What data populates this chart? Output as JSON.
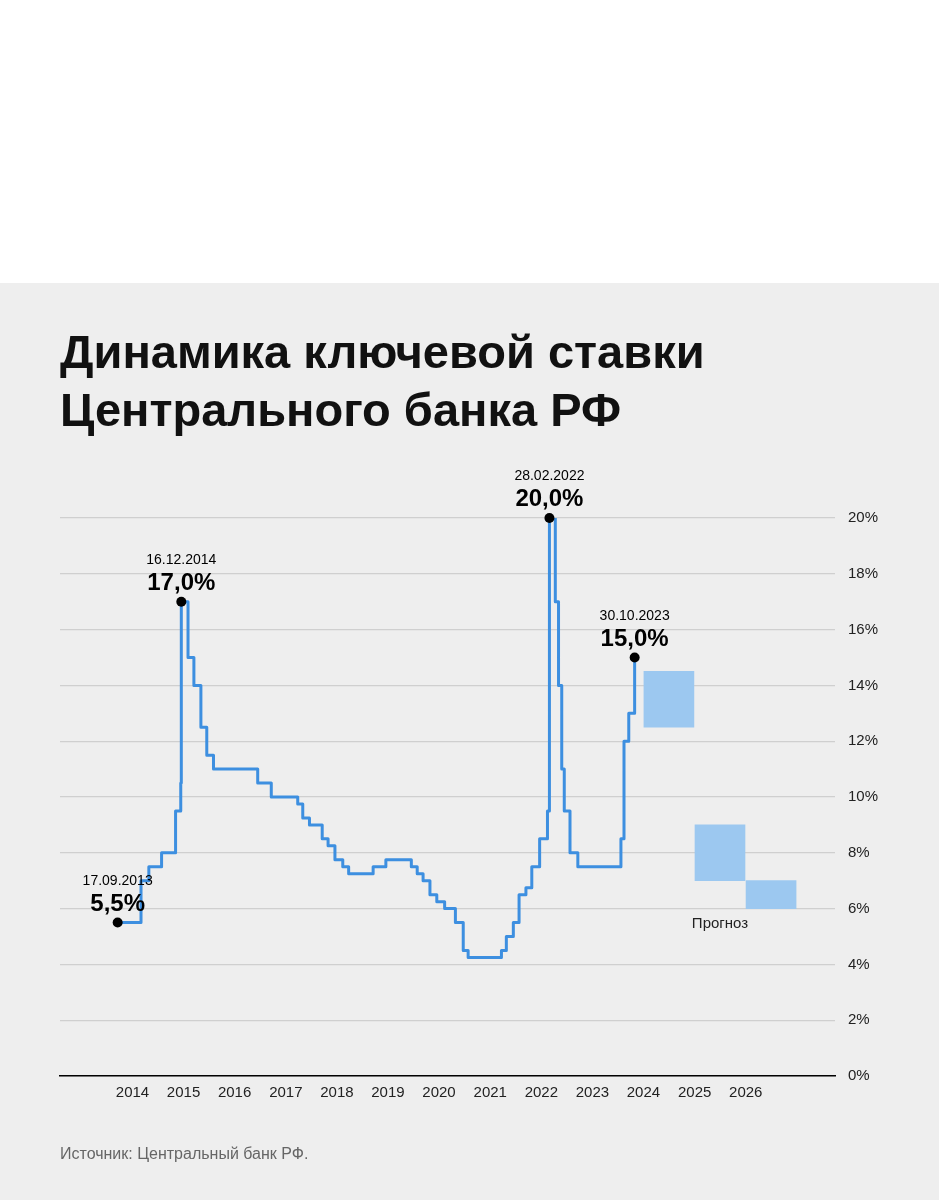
{
  "chart_data": {
    "type": "step",
    "title": "Динамика ключевой ставки Центрального банка РФ",
    "xlim": [
      "2012-08",
      "2027-10"
    ],
    "xticks": [
      "2014",
      "2015",
      "2016",
      "2017",
      "2018",
      "2019",
      "2020",
      "2021",
      "2022",
      "2023",
      "2024",
      "2025",
      "2026"
    ],
    "ylim": [
      0,
      20
    ],
    "yticks": [
      {
        "value": 0,
        "label": "0%"
      },
      {
        "value": 2,
        "label": "2%"
      },
      {
        "value": 4,
        "label": "4%"
      },
      {
        "value": 6,
        "label": "6%"
      },
      {
        "value": 8,
        "label": "8%"
      },
      {
        "value": 10,
        "label": "10%"
      },
      {
        "value": 12,
        "label": "12%"
      },
      {
        "value": 14,
        "label": "14%"
      },
      {
        "value": 16,
        "label": "16%"
      },
      {
        "value": 18,
        "label": "18%"
      },
      {
        "value": 20,
        "label": "20%"
      }
    ],
    "grid": "y",
    "series": [
      {
        "color": "#3d8fe0",
        "x": [
          "2013-09-17",
          "2014-03-03",
          "2014-04-28",
          "2014-07-28",
          "2014-11-05",
          "2014-12-12",
          "2014-12-16",
          "2015-02-02",
          "2015-03-16",
          "2015-05-05",
          "2015-06-16",
          "2015-08-03",
          "2016-06-14",
          "2016-09-19",
          "2017-03-27",
          "2017-05-02",
          "2017-06-19",
          "2017-09-18",
          "2017-10-30",
          "2017-12-18",
          "2018-02-12",
          "2018-03-26",
          "2018-09-17",
          "2018-12-17",
          "2019-06-17",
          "2019-07-29",
          "2019-09-09",
          "2019-10-28",
          "2019-12-16",
          "2020-02-10",
          "2020-04-27",
          "2020-06-22",
          "2020-07-27",
          "2021-03-22",
          "2021-04-26",
          "2021-06-15",
          "2021-07-26",
          "2021-09-13",
          "2021-10-25",
          "2021-12-20",
          "2022-02-14",
          "2022-02-28",
          "2022-04-11",
          "2022-05-04",
          "2022-05-27",
          "2022-06-14",
          "2022-07-25",
          "2022-09-19",
          "2023-07-24",
          "2023-08-15",
          "2023-09-18",
          "2023-10-30"
        ],
        "values": [
          5.5,
          7,
          7.5,
          8,
          9.5,
          10.5,
          17,
          15,
          14,
          12.5,
          11.5,
          11,
          10.5,
          10,
          9.75,
          9.25,
          9,
          8.5,
          8.25,
          7.75,
          7.5,
          7.25,
          7.5,
          7.75,
          7.5,
          7.25,
          7,
          6.5,
          6.25,
          6,
          5.5,
          4.5,
          4.25,
          4.5,
          5,
          5.5,
          6.5,
          6.75,
          7.5,
          8.5,
          9.5,
          20,
          17,
          14,
          11,
          9.5,
          8,
          7.5,
          8.5,
          12,
          13,
          15
        ]
      },
      {
        "type": "bar",
        "name": "Прогноз",
        "color": "#9cc8f0",
        "x": [
          "2024-07-01",
          "2025-07-01",
          "2026-07-01"
        ],
        "base": [
          12.5,
          7,
          6
        ],
        "values": [
          2,
          2,
          1
        ]
      }
    ],
    "annotations": [
      {
        "text": "17.09.2013",
        "x": "2013-09-17",
        "y": 5.5
      },
      {
        "text": "5,5%",
        "x": "2013-09-17",
        "y": 5.5
      },
      {
        "text": "16.12.2014",
        "x": "2014-12-16",
        "y": 17
      },
      {
        "text": "17,0%",
        "x": "2014-12-16",
        "y": 17
      },
      {
        "text": "28.02.2022",
        "x": "2022-02-28",
        "y": 20
      },
      {
        "text": "20,0%",
        "x": "2022-02-28",
        "y": 20
      },
      {
        "text": "30.10.2023",
        "x": "2023-10-30",
        "y": 15
      },
      {
        "text": "15,0%",
        "x": "2023-10-30",
        "y": 15
      },
      "Источник: Центральный банк РФ."
    ]
  }
}
